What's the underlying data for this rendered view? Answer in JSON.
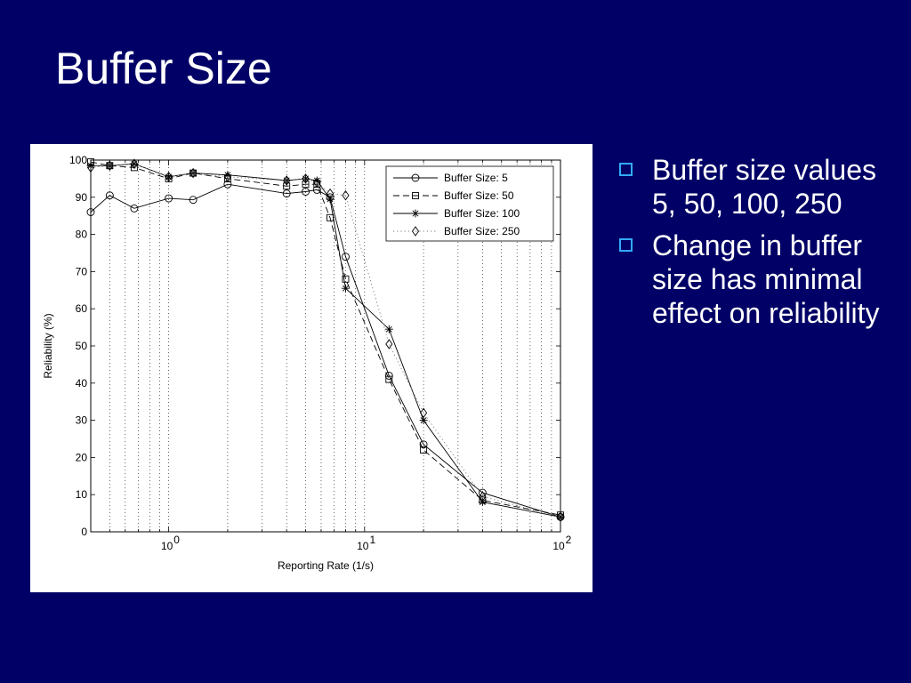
{
  "slide": {
    "title": "Buffer Size",
    "bullets": [
      "Buffer size values 5, 50, 100, 250",
      "Change in buffer size has minimal effect on reliability"
    ]
  },
  "colors": {
    "background": "#000066",
    "text": "#ffffff",
    "bullet_box": "#33aaff",
    "chart_background": "#ffffff"
  },
  "chart_data": {
    "type": "line",
    "title": "",
    "xlabel": "Reporting Rate (1/s)",
    "ylabel": "Reliability (%)",
    "xscale": "log",
    "xlim": [
      0.4,
      100
    ],
    "ylim": [
      0,
      100
    ],
    "yticks": [
      "0",
      "10",
      "20",
      "30",
      "40",
      "50",
      "60",
      "70",
      "80",
      "90",
      "100"
    ],
    "xticks": [
      {
        "value": 1,
        "base": "10",
        "exp": "0"
      },
      {
        "value": 10,
        "base": "10",
        "exp": "1"
      },
      {
        "value": 100,
        "base": "10",
        "exp": "2"
      }
    ],
    "grid": "vertical dotted at log minor ticks",
    "legend_position": "top-right",
    "series": [
      {
        "name": "Buffer Size: 5",
        "marker": "circle",
        "linestyle": "solid",
        "x": [
          0.4,
          0.5,
          0.667,
          1,
          1.333,
          2,
          4,
          5,
          5.714,
          6.667,
          8,
          13.33,
          20,
          40,
          100
        ],
        "y": [
          86,
          90.5,
          87,
          89.7,
          89.3,
          93.5,
          91,
          91.5,
          92,
          90,
          74,
          42,
          23.5,
          10.5,
          4
        ]
      },
      {
        "name": "Buffer Size: 50",
        "marker": "square",
        "linestyle": "dashed",
        "x": [
          0.4,
          0.5,
          0.667,
          1,
          1.333,
          2,
          4,
          5,
          5.714,
          6.667,
          8,
          13.33,
          20,
          40,
          100
        ],
        "y": [
          99.5,
          98.5,
          98,
          95,
          96.5,
          95,
          93,
          93.5,
          93.5,
          84.5,
          68,
          41,
          22,
          8.5,
          4.5
        ]
      },
      {
        "name": "Buffer Size: 100",
        "marker": "asterisk",
        "linestyle": "solid",
        "x": [
          0.4,
          0.5,
          0.667,
          1,
          1.333,
          2,
          4,
          5,
          5.714,
          6.667,
          8,
          13.33,
          20,
          40,
          100
        ],
        "y": [
          98.5,
          98.5,
          99,
          95.5,
          96.5,
          96,
          94.5,
          95,
          94.5,
          89.5,
          65.5,
          54.5,
          30,
          8,
          4
        ]
      },
      {
        "name": "Buffer Size: 250",
        "marker": "diamond",
        "linestyle": "dotted",
        "x": [
          0.4,
          0.5,
          0.667,
          1,
          1.333,
          2,
          4,
          5,
          5.714,
          6.667,
          8,
          13.33,
          20,
          40,
          100
        ],
        "y": [
          98,
          98.5,
          99,
          95.5,
          96.5,
          95.5,
          94.5,
          95,
          94,
          91,
          90.5,
          50.5,
          32,
          9.5,
          4
        ]
      }
    ]
  }
}
